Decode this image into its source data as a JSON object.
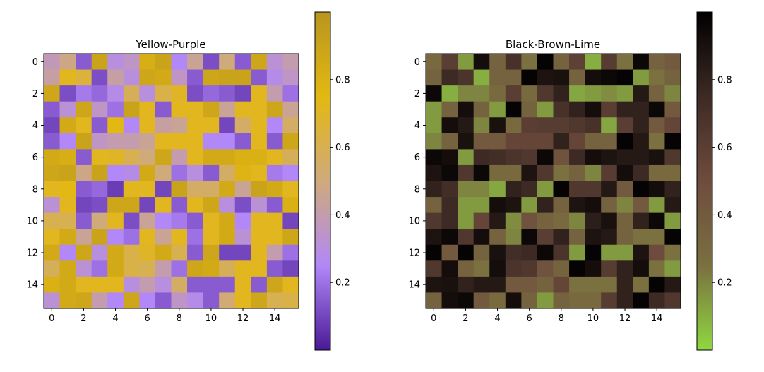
{
  "chart_data": [
    {
      "type": "heatmap",
      "title": "Yellow-Purple",
      "xlabel": "",
      "ylabel": "",
      "x_ticks": [
        "0",
        "2",
        "4",
        "6",
        "8",
        "10",
        "12",
        "14"
      ],
      "y_ticks": [
        "0",
        "2",
        "4",
        "6",
        "8",
        "10",
        "12",
        "14"
      ],
      "colorbar_ticks": [
        "0.2",
        "0.4",
        "0.6",
        "0.8"
      ],
      "colorbar_range": [
        0,
        1
      ],
      "colormap": [
        "#4a1a96",
        "#b287f7",
        "#cfaa7b",
        "#e3b812",
        "#b89520"
      ],
      "grid": false,
      "values": [
        [
          0.38,
          0.48,
          0.15,
          0.9,
          0.3,
          0.35,
          0.82,
          0.9,
          0.25,
          0.45,
          0.12,
          0.5,
          0.15,
          0.88,
          0.32,
          0.4
        ],
        [
          0.42,
          0.72,
          0.65,
          0.12,
          0.42,
          0.3,
          0.88,
          0.85,
          0.35,
          0.15,
          0.88,
          0.9,
          0.9,
          0.15,
          0.28,
          0.35
        ],
        [
          0.88,
          0.12,
          0.22,
          0.18,
          0.28,
          0.58,
          0.3,
          0.62,
          0.7,
          0.12,
          0.18,
          0.15,
          0.1,
          0.72,
          0.4,
          0.2
        ],
        [
          0.15,
          0.32,
          0.88,
          0.35,
          0.2,
          0.9,
          0.72,
          0.15,
          0.72,
          0.72,
          0.88,
          0.45,
          0.72,
          0.72,
          0.88,
          0.45
        ],
        [
          0.1,
          0.85,
          0.72,
          0.15,
          0.75,
          0.25,
          0.72,
          0.42,
          0.45,
          0.72,
          0.72,
          0.1,
          0.55,
          0.72,
          0.25,
          0.55
        ],
        [
          0.15,
          0.25,
          0.9,
          0.35,
          0.4,
          0.4,
          0.45,
          0.72,
          0.72,
          0.72,
          0.25,
          0.25,
          0.15,
          0.72,
          0.15,
          0.88
        ],
        [
          0.85,
          0.82,
          0.15,
          0.72,
          0.7,
          0.6,
          0.5,
          0.88,
          0.4,
          0.72,
          0.85,
          0.85,
          0.8,
          0.8,
          0.72,
          0.58
        ],
        [
          0.88,
          0.9,
          0.48,
          0.9,
          0.25,
          0.28,
          0.85,
          0.5,
          0.2,
          0.3,
          0.15,
          0.55,
          0.78,
          0.72,
          0.22,
          0.25
        ],
        [
          0.72,
          0.75,
          0.15,
          0.18,
          0.08,
          0.72,
          0.72,
          0.1,
          0.9,
          0.55,
          0.55,
          0.85,
          0.45,
          0.9,
          0.85,
          0.72
        ],
        [
          0.32,
          0.72,
          0.1,
          0.12,
          0.88,
          0.88,
          0.1,
          0.72,
          0.15,
          0.72,
          0.88,
          0.3,
          0.12,
          0.32,
          0.15,
          0.8
        ],
        [
          0.6,
          0.6,
          0.15,
          0.5,
          0.72,
          0.12,
          0.45,
          0.25,
          0.22,
          0.15,
          0.72,
          0.85,
          0.25,
          0.72,
          0.72,
          0.1
        ],
        [
          0.72,
          0.85,
          0.45,
          0.9,
          0.25,
          0.2,
          0.72,
          0.45,
          0.72,
          0.2,
          0.72,
          0.85,
          0.32,
          0.72,
          0.72,
          0.88
        ],
        [
          0.85,
          0.25,
          0.88,
          0.3,
          0.85,
          0.62,
          0.7,
          0.85,
          0.6,
          0.15,
          0.88,
          0.1,
          0.1,
          0.72,
          0.4,
          0.2
        ],
        [
          0.58,
          0.85,
          0.32,
          0.2,
          0.85,
          0.62,
          0.6,
          0.4,
          0.2,
          0.88,
          0.85,
          0.58,
          0.72,
          0.72,
          0.15,
          0.1
        ],
        [
          0.8,
          0.85,
          0.72,
          0.72,
          0.72,
          0.3,
          0.4,
          0.3,
          0.55,
          0.15,
          0.15,
          0.15,
          0.72,
          0.15,
          0.88,
          0.72
        ],
        [
          0.32,
          0.85,
          0.88,
          0.4,
          0.25,
          0.88,
          0.25,
          0.15,
          0.35,
          0.28,
          0.15,
          0.52,
          0.72,
          0.88,
          0.6,
          0.62
        ]
      ]
    },
    {
      "type": "heatmap",
      "title": "Black-Brown-Lime",
      "xlabel": "",
      "ylabel": "",
      "x_ticks": [
        "0",
        "2",
        "4",
        "6",
        "8",
        "10",
        "12",
        "14"
      ],
      "y_ticks": [
        "0",
        "2",
        "4",
        "6",
        "8",
        "10",
        "12",
        "14"
      ],
      "colorbar_ticks": [
        "0.2",
        "0.4",
        "0.6",
        "0.8"
      ],
      "colorbar_range": [
        0,
        1
      ],
      "colormap": [
        "#8fd840",
        "#7a7040",
        "#6e4c3d",
        "#3d2a24",
        "#000000"
      ],
      "grid": false,
      "values": [
        [
          0.3,
          0.6,
          0.15,
          0.92,
          0.35,
          0.7,
          0.25,
          0.98,
          0.35,
          0.58,
          0.1,
          0.62,
          0.25,
          0.95,
          0.35,
          0.4
        ],
        [
          0.35,
          0.75,
          0.68,
          0.1,
          0.35,
          0.35,
          0.98,
          0.88,
          0.9,
          0.35,
          0.92,
          0.95,
          0.98,
          0.15,
          0.25,
          0.35
        ],
        [
          0.95,
          0.1,
          0.2,
          0.2,
          0.3,
          0.6,
          0.3,
          0.65,
          0.8,
          0.12,
          0.15,
          0.18,
          0.15,
          0.85,
          0.35,
          0.2
        ],
        [
          0.15,
          0.35,
          0.92,
          0.35,
          0.15,
          0.98,
          0.35,
          0.15,
          0.7,
          0.8,
          0.92,
          0.6,
          0.8,
          0.8,
          0.95,
          0.4
        ],
        [
          0.15,
          0.92,
          0.85,
          0.2,
          0.9,
          0.3,
          0.6,
          0.62,
          0.62,
          0.65,
          0.7,
          0.12,
          0.6,
          0.8,
          0.4,
          0.55
        ],
        [
          0.2,
          0.35,
          0.9,
          0.4,
          0.4,
          0.55,
          0.55,
          0.55,
          0.8,
          0.55,
          0.35,
          0.35,
          0.98,
          0.85,
          0.25,
          0.98
        ],
        [
          0.95,
          0.92,
          0.15,
          0.75,
          0.72,
          0.68,
          0.65,
          0.95,
          0.45,
          0.75,
          0.92,
          0.88,
          0.85,
          0.85,
          0.9,
          0.65
        ],
        [
          0.88,
          0.95,
          0.65,
          0.95,
          0.3,
          0.3,
          0.88,
          0.65,
          0.25,
          0.35,
          0.2,
          0.62,
          0.92,
          0.75,
          0.3,
          0.3
        ],
        [
          0.8,
          0.72,
          0.2,
          0.2,
          0.12,
          0.8,
          0.75,
          0.15,
          0.98,
          0.65,
          0.65,
          0.85,
          0.4,
          0.98,
          0.92,
          0.8
        ],
        [
          0.35,
          0.75,
          0.15,
          0.15,
          0.92,
          0.88,
          0.15,
          0.8,
          0.35,
          0.88,
          0.92,
          0.35,
          0.2,
          0.4,
          0.15,
          0.85
        ],
        [
          0.65,
          0.75,
          0.15,
          0.55,
          0.85,
          0.18,
          0.45,
          0.35,
          0.3,
          0.2,
          0.82,
          0.9,
          0.35,
          0.8,
          0.95,
          0.15
        ],
        [
          0.88,
          0.95,
          0.65,
          0.92,
          0.35,
          0.2,
          0.95,
          0.6,
          0.8,
          0.35,
          0.88,
          0.85,
          0.35,
          0.25,
          0.25,
          0.98
        ],
        [
          0.98,
          0.4,
          0.98,
          0.35,
          0.9,
          0.72,
          0.75,
          0.95,
          0.68,
          0.15,
          0.98,
          0.15,
          0.15,
          0.88,
          0.5,
          0.25
        ],
        [
          0.65,
          0.92,
          0.35,
          0.25,
          0.92,
          0.68,
          0.65,
          0.45,
          0.35,
          0.98,
          0.92,
          0.62,
          0.8,
          0.92,
          0.25,
          0.15
        ],
        [
          0.88,
          0.9,
          0.8,
          0.85,
          0.85,
          0.4,
          0.4,
          0.35,
          0.55,
          0.25,
          0.25,
          0.25,
          0.8,
          0.25,
          0.98,
          0.85
        ],
        [
          0.35,
          0.92,
          0.95,
          0.4,
          0.3,
          0.92,
          0.35,
          0.15,
          0.35,
          0.3,
          0.3,
          0.62,
          0.8,
          0.98,
          0.75,
          0.65
        ]
      ]
    }
  ]
}
